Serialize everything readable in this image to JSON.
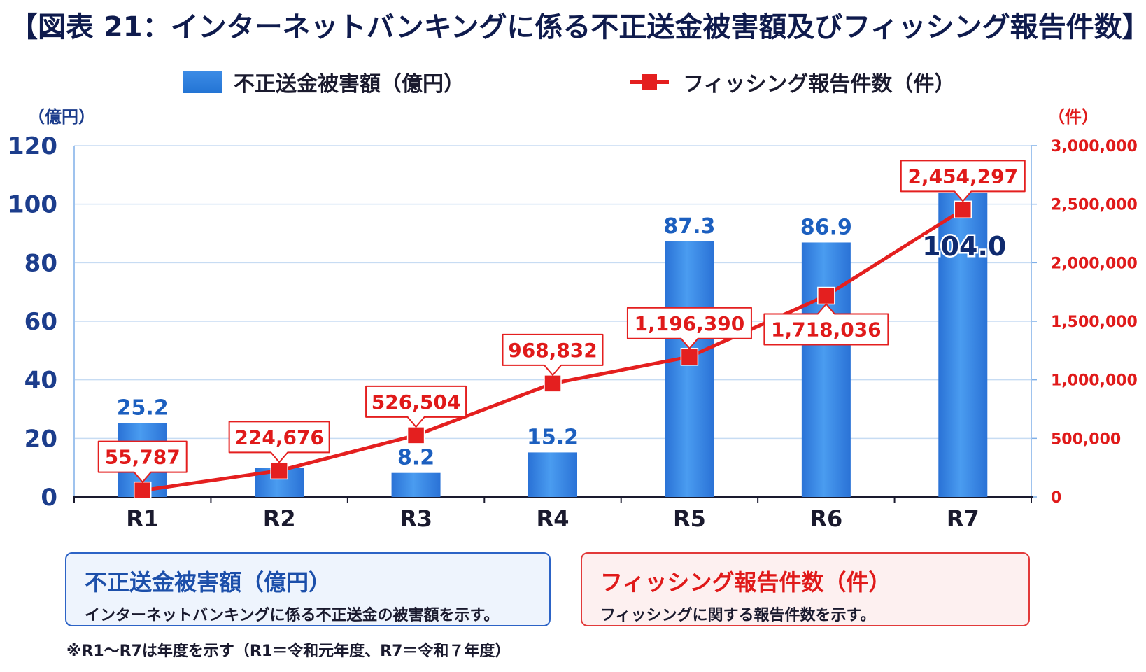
{
  "title": "【図表 21：インターネットバンキングに係る不正送金被害額及びフィッシング報告件数】",
  "legend": {
    "bar_label": "不正送金被害額（億円）",
    "line_label": "フィッシング報告件数（件）"
  },
  "chart_data": {
    "type": "bar",
    "categories": [
      "R1",
      "R2",
      "R3",
      "R4",
      "R5",
      "R6",
      "R7"
    ],
    "series": [
      {
        "name": "不正送金被害額（億円）",
        "type": "bar",
        "axis": "left",
        "values": [
          25.2,
          10.0,
          8.2,
          15.2,
          87.3,
          86.9,
          104.0
        ],
        "labels": [
          "25.2",
          "",
          "8.2",
          "15.2",
          "87.3",
          "86.9",
          "104.0"
        ],
        "color": "#2b7fde"
      },
      {
        "name": "フィッシング報告件数（件）",
        "type": "line",
        "axis": "right",
        "values": [
          55787,
          224676,
          526504,
          968832,
          1196390,
          1718036,
          2454297
        ],
        "labels": [
          "55,787",
          "224,676",
          "526,504",
          "968,832",
          "1,196,390",
          "1,718,036",
          "2,454,297"
        ],
        "color": "#e41f1f"
      }
    ],
    "y_left": {
      "unit": "（億円）",
      "ylim": [
        0,
        120
      ],
      "ticks": [
        0,
        20,
        40,
        60,
        80,
        100,
        120
      ],
      "tick_labels": [
        "0",
        "20",
        "40",
        "60",
        "80",
        "100",
        "120"
      ]
    },
    "y_right": {
      "unit": "（件）",
      "ylim": [
        0,
        3000000
      ],
      "ticks": [
        0,
        500000,
        1000000,
        1500000,
        2000000,
        2500000,
        3000000
      ],
      "tick_labels": [
        "0",
        "500,000",
        "1,000,000",
        "1,500,000",
        "2,000,000",
        "2,500,000",
        "3,000,000"
      ]
    },
    "grid": true,
    "legend_position": "top"
  },
  "boxes": {
    "bar": {
      "title": "不正送金被害額（億円）",
      "desc": "インターネットバンキングに係る不正送金の被害額を示す。"
    },
    "line": {
      "title": "フィッシング報告件数（件）",
      "desc": "フィッシングに関する報告件数を示す。"
    }
  },
  "footnote": "※R1～R7は年度を示す（R1＝令和元年度、R7＝令和７年度）",
  "colors": {
    "bar": "#2b7fde",
    "line": "#e41f1f",
    "left_axis_text": "#1c3d8c",
    "right_axis_text": "#e01a1a",
    "grid": "#c7dcf3"
  }
}
